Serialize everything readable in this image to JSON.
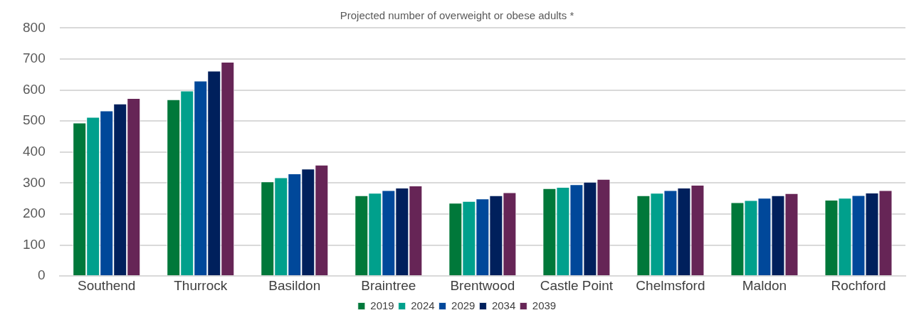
{
  "chart_data": {
    "type": "bar",
    "title": "Projected number of overweight or obese adults *",
    "categories": [
      "Southend",
      "Thurrock",
      "Basildon",
      "Braintree",
      "Brentwood",
      "Castle Point",
      "Chelmsford",
      "Maldon",
      "Rochford"
    ],
    "series": [
      {
        "name": "2019",
        "color": "#00783a",
        "values": [
          495,
          570,
          305,
          260,
          236,
          283,
          260,
          238,
          246
        ]
      },
      {
        "name": "2024",
        "color": "#00a08c",
        "values": [
          513,
          598,
          318,
          268,
          242,
          287,
          268,
          245,
          252
        ]
      },
      {
        "name": "2029",
        "color": "#00489a",
        "values": [
          534,
          630,
          331,
          277,
          250,
          296,
          277,
          252,
          261
        ]
      },
      {
        "name": "2034",
        "color": "#00205c",
        "values": [
          556,
          662,
          346,
          285,
          260,
          304,
          285,
          260,
          269
        ]
      },
      {
        "name": "2039",
        "color": "#662556",
        "values": [
          574,
          691,
          359,
          292,
          270,
          313,
          294,
          267,
          277
        ]
      }
    ],
    "ylim": [
      0,
      800
    ],
    "yticks": [
      0,
      100,
      200,
      300,
      400,
      500,
      600,
      700,
      800
    ],
    "grid": "y",
    "legend": "bottom"
  }
}
